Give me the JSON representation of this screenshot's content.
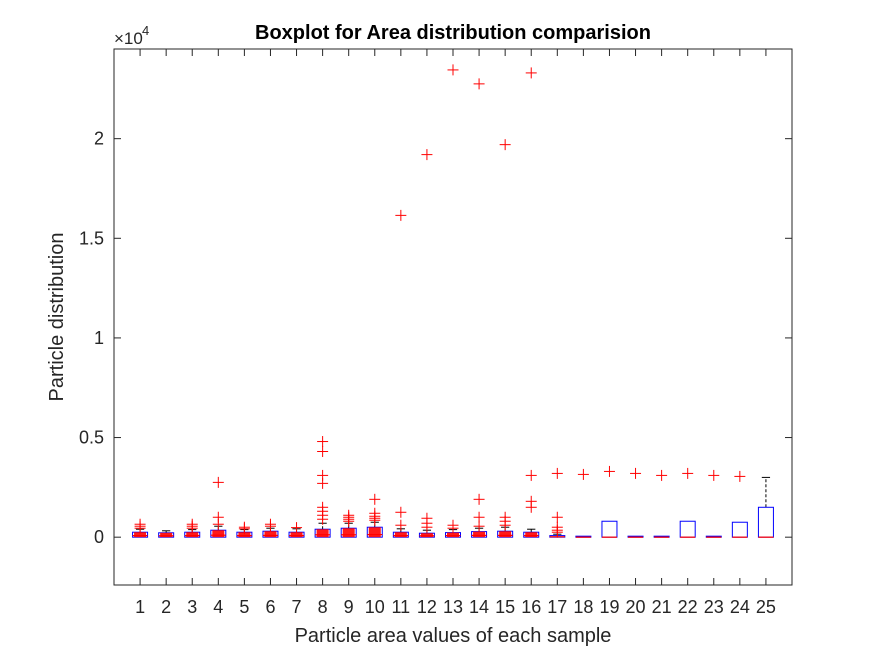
{
  "chart_data": {
    "type": "boxplot",
    "title": "Boxplot for Area distribution comparision",
    "xlabel": "Particle area values of each sample",
    "ylabel": "Particle distribution",
    "y_exponent_label": "×10",
    "y_exponent_power": "4",
    "ylim": [
      -2400,
      24500
    ],
    "yticks": [
      0,
      5000,
      10000,
      15000,
      20000
    ],
    "ytick_labels": [
      "0",
      "0.5",
      "1",
      "1.5",
      "2"
    ],
    "categories": [
      "1",
      "2",
      "3",
      "4",
      "5",
      "6",
      "7",
      "8",
      "9",
      "10",
      "11",
      "12",
      "13",
      "14",
      "15",
      "16",
      "17",
      "18",
      "19",
      "20",
      "21",
      "22",
      "23",
      "24",
      "25"
    ],
    "box_color": "#0000ff",
    "median_color": "#ff0000",
    "outlier_color": "#ff0000",
    "whisker_color": "#000000",
    "boxes": [
      {
        "q1": 0,
        "median": 80,
        "q3": 250,
        "whisker_low": 0,
        "whisker_high": 400,
        "outliers": [
          450,
          550,
          650
        ]
      },
      {
        "q1": 0,
        "median": 70,
        "q3": 220,
        "whisker_low": 0,
        "whisker_high": 320,
        "outliers": []
      },
      {
        "q1": 0,
        "median": 80,
        "q3": 250,
        "whisker_low": 0,
        "whisker_high": 380,
        "outliers": [
          450,
          550,
          650
        ]
      },
      {
        "q1": 0,
        "median": 100,
        "q3": 350,
        "whisker_low": 0,
        "whisker_high": 550,
        "outliers": [
          650,
          1000,
          2750
        ]
      },
      {
        "q1": 0,
        "median": 80,
        "q3": 250,
        "whisker_low": 0,
        "whisker_high": 380,
        "outliers": [
          420,
          500
        ]
      },
      {
        "q1": 0,
        "median": 90,
        "q3": 300,
        "whisker_low": 0,
        "whisker_high": 450,
        "outliers": [
          550,
          650
        ]
      },
      {
        "q1": 0,
        "median": 80,
        "q3": 250,
        "whisker_low": 0,
        "whisker_high": 420,
        "outliers": [
          480
        ]
      },
      {
        "q1": 0,
        "median": 120,
        "q3": 400,
        "whisker_low": 0,
        "whisker_high": 700,
        "outliers": [
          900,
          1100,
          1300,
          1500,
          2700,
          3100,
          4300,
          4800
        ]
      },
      {
        "q1": 0,
        "median": 120,
        "q3": 450,
        "whisker_low": 0,
        "whisker_high": 700,
        "outliers": [
          800,
          900,
          1000,
          1100
        ]
      },
      {
        "q1": 0,
        "median": 130,
        "q3": 500,
        "whisker_low": 0,
        "whisker_high": 750,
        "outliers": [
          850,
          950,
          1050,
          1200,
          1900
        ]
      },
      {
        "q1": 0,
        "median": 80,
        "q3": 250,
        "whisker_low": 0,
        "whisker_high": 420,
        "outliers": [
          600,
          1250,
          16150
        ]
      },
      {
        "q1": 0,
        "median": 70,
        "q3": 200,
        "whisker_low": 0,
        "whisker_high": 350,
        "outliers": [
          500,
          700,
          950,
          19200
        ]
      },
      {
        "q1": 0,
        "median": 80,
        "q3": 230,
        "whisker_low": 0,
        "whisker_high": 380,
        "outliers": [
          450,
          600,
          23450
        ]
      },
      {
        "q1": 0,
        "median": 90,
        "q3": 280,
        "whisker_low": 0,
        "whisker_high": 450,
        "outliers": [
          550,
          1000,
          1900,
          22750
        ]
      },
      {
        "q1": 0,
        "median": 90,
        "q3": 300,
        "whisker_low": 0,
        "whisker_high": 500,
        "outliers": [
          600,
          800,
          1000,
          19700
        ]
      },
      {
        "q1": 0,
        "median": 80,
        "q3": 250,
        "whisker_low": 0,
        "whisker_high": 400,
        "outliers": [
          1500,
          1800,
          3100,
          23300
        ]
      },
      {
        "q1": 0,
        "median": 20,
        "q3": 80,
        "whisker_low": 0,
        "whisker_high": 150,
        "outliers": [
          250,
          350,
          500,
          1000,
          3200
        ]
      },
      {
        "q1": 0,
        "median": 0,
        "q3": 10,
        "whisker_low": 0,
        "whisker_high": 20,
        "outliers": [
          3150
        ]
      },
      {
        "q1": 0,
        "median": 0,
        "q3": 800,
        "whisker_low": 0,
        "whisker_high": 800,
        "outliers": [
          3300
        ]
      },
      {
        "q1": 0,
        "median": 0,
        "q3": 10,
        "whisker_low": 0,
        "whisker_high": 20,
        "outliers": [
          3200
        ]
      },
      {
        "q1": 0,
        "median": 0,
        "q3": 10,
        "whisker_low": 0,
        "whisker_high": 20,
        "outliers": [
          3100
        ]
      },
      {
        "q1": 0,
        "median": 0,
        "q3": 800,
        "whisker_low": 0,
        "whisker_high": 800,
        "outliers": [
          3200
        ]
      },
      {
        "q1": 0,
        "median": 0,
        "q3": 10,
        "whisker_low": 0,
        "whisker_high": 20,
        "outliers": [
          3100
        ]
      },
      {
        "q1": 0,
        "median": 0,
        "q3": 750,
        "whisker_low": 0,
        "whisker_high": 750,
        "outliers": [
          3050
        ]
      },
      {
        "q1": 0,
        "median": 0,
        "q3": 1500,
        "whisker_low": 0,
        "whisker_high": 3000,
        "outliers": []
      }
    ]
  }
}
